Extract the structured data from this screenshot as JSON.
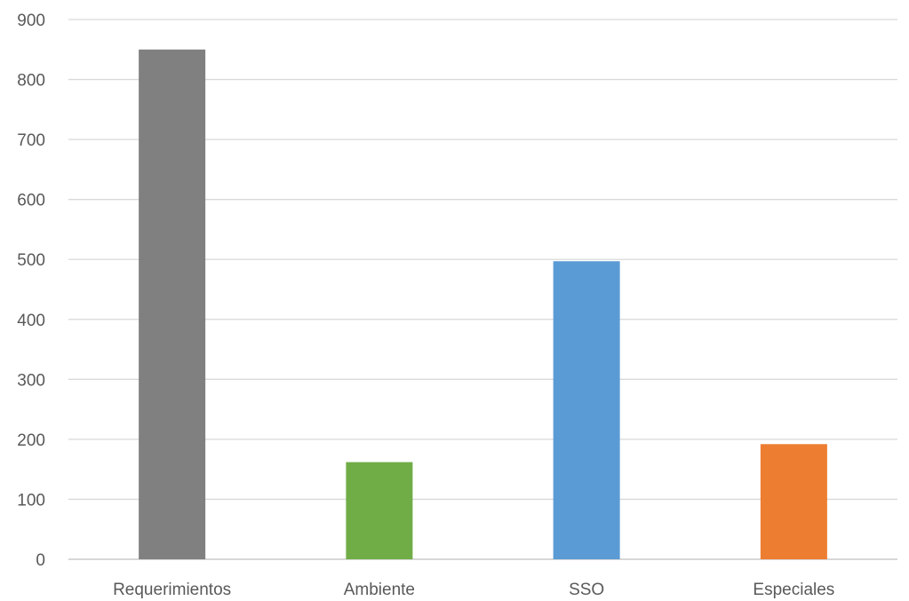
{
  "chart_data": {
    "type": "bar",
    "title": "",
    "xlabel": "",
    "ylabel": "",
    "categories": [
      "Requerimientos",
      "Ambiente",
      "SSO",
      "Especiales"
    ],
    "values": [
      850,
      162,
      497,
      192
    ],
    "colors": [
      "#808080",
      "#70ad47",
      "#5b9bd5",
      "#ed7d31"
    ],
    "ylim": [
      0,
      900
    ],
    "yticks": [
      0,
      100,
      200,
      300,
      400,
      500,
      600,
      700,
      800,
      900
    ],
    "grid": true,
    "legend": "none"
  }
}
